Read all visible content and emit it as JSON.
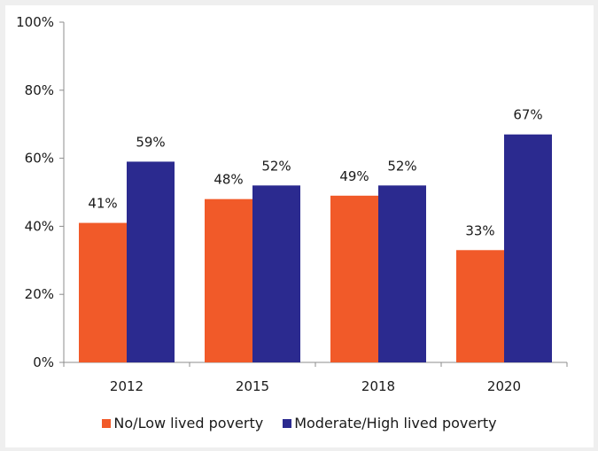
{
  "chart_data": {
    "type": "bar",
    "categories": [
      "2012",
      "2015",
      "2018",
      "2020"
    ],
    "series": [
      {
        "name": "No/Low lived poverty",
        "values": [
          41,
          48,
          49,
          33
        ],
        "labels": [
          "41%",
          "48%",
          "49%",
          "33%"
        ],
        "color": "#f15a29"
      },
      {
        "name": "Moderate/High lived poverty",
        "values": [
          59,
          52,
          52,
          67
        ],
        "labels": [
          "59%",
          "52%",
          "52%",
          "67%"
        ],
        "color": "#2b2a8f"
      }
    ],
    "ylim": [
      0,
      100
    ],
    "yticks": [
      0,
      20,
      40,
      60,
      80,
      100
    ],
    "ytick_labels": [
      "0%",
      "20%",
      "40%",
      "60%",
      "80%",
      "100%"
    ],
    "grid": false,
    "legend_position": "bottom"
  }
}
